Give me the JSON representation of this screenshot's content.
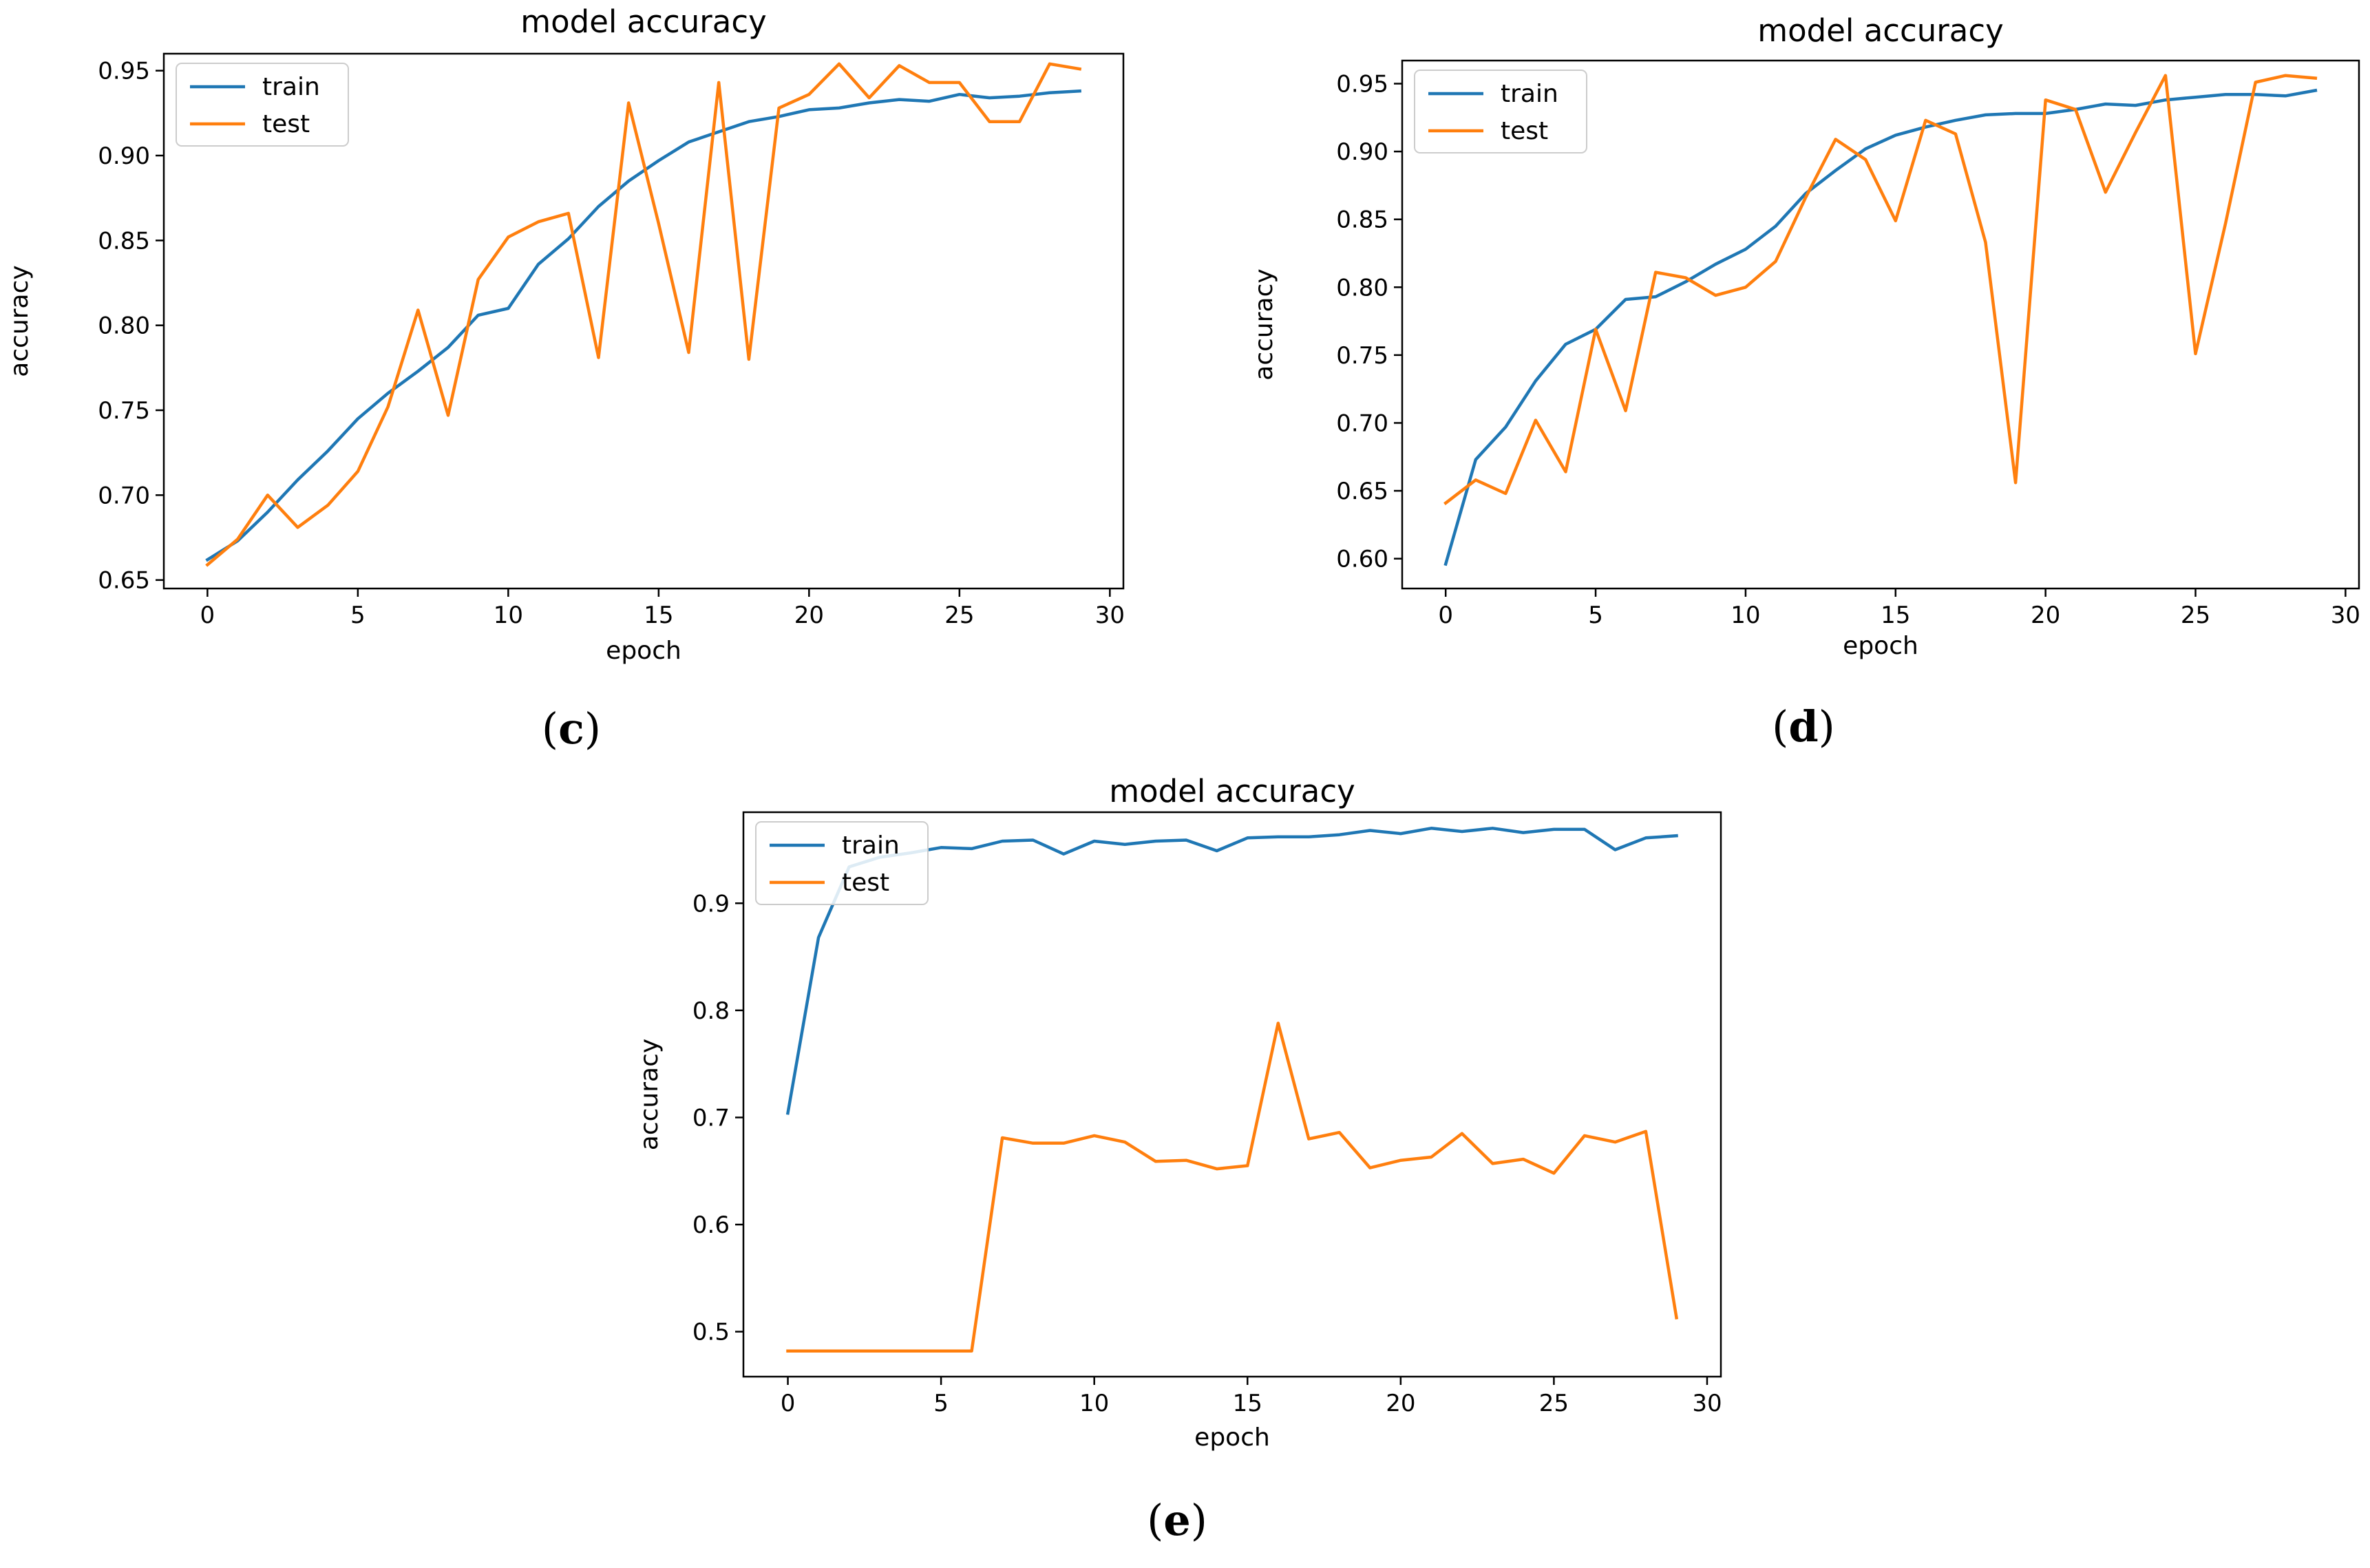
{
  "chart_data": [
    {
      "id": "c",
      "type": "line",
      "title": "model accuracy",
      "xlabel": "epoch",
      "ylabel": "accuracy",
      "xlim": [
        -1.45,
        30.45
      ],
      "ylim": [
        0.645,
        0.96
      ],
      "xticks": [
        0,
        5,
        10,
        15,
        20,
        25,
        30
      ],
      "yticks": [
        0.65,
        0.7,
        0.75,
        0.8,
        0.85,
        0.9,
        0.95
      ],
      "ytick_labels": [
        "0.65",
        "0.70",
        "0.75",
        "0.80",
        "0.85",
        "0.90",
        "0.95"
      ],
      "legend_position": "upper-left",
      "caption": {
        "open": "(",
        "letter": "c",
        "close": ")"
      },
      "x": [
        0,
        1,
        2,
        3,
        4,
        5,
        6,
        7,
        8,
        9,
        10,
        11,
        12,
        13,
        14,
        15,
        16,
        17,
        18,
        19,
        20,
        21,
        22,
        23,
        24,
        25,
        26,
        27,
        28,
        29
      ],
      "series": [
        {
          "name": "train",
          "color": "#1f77b4",
          "values": [
            0.662,
            0.673,
            0.69,
            0.709,
            0.726,
            0.745,
            0.76,
            0.773,
            0.787,
            0.806,
            0.81,
            0.836,
            0.851,
            0.87,
            0.885,
            0.897,
            0.908,
            0.914,
            0.92,
            0.923,
            0.927,
            0.928,
            0.931,
            0.933,
            0.932,
            0.936,
            0.934,
            0.935,
            0.937,
            0.938
          ]
        },
        {
          "name": "test",
          "color": "#ff7f0e",
          "values": [
            0.659,
            0.674,
            0.7,
            0.681,
            0.694,
            0.714,
            0.752,
            0.809,
            0.747,
            0.827,
            0.852,
            0.861,
            0.866,
            0.781,
            0.931,
            0.86,
            0.784,
            0.943,
            0.78,
            0.928,
            0.936,
            0.954,
            0.934,
            0.953,
            0.943,
            0.943,
            0.92,
            0.92,
            0.954,
            0.951
          ]
        }
      ]
    },
    {
      "id": "d",
      "type": "line",
      "title": "model accuracy",
      "xlabel": "epoch",
      "ylabel": "accuracy",
      "xlim": [
        -1.45,
        30.45
      ],
      "ylim": [
        0.578,
        0.967
      ],
      "xticks": [
        0,
        5,
        10,
        15,
        20,
        25,
        30
      ],
      "yticks": [
        0.6,
        0.65,
        0.7,
        0.75,
        0.8,
        0.85,
        0.9,
        0.95
      ],
      "ytick_labels": [
        "0.60",
        "0.65",
        "0.70",
        "0.75",
        "0.80",
        "0.85",
        "0.90",
        "0.95"
      ],
      "legend_position": "upper-left",
      "caption": {
        "open": "(",
        "letter": "d",
        "close": ")"
      },
      "x": [
        0,
        1,
        2,
        3,
        4,
        5,
        6,
        7,
        8,
        9,
        10,
        11,
        12,
        13,
        14,
        15,
        16,
        17,
        18,
        19,
        20,
        21,
        22,
        23,
        24,
        25,
        26,
        27,
        28,
        29
      ],
      "series": [
        {
          "name": "train",
          "color": "#1f77b4",
          "values": [
            0.596,
            0.673,
            0.697,
            0.731,
            0.758,
            0.769,
            0.791,
            0.793,
            0.804,
            0.817,
            0.828,
            0.845,
            0.869,
            0.886,
            0.902,
            0.912,
            0.918,
            0.923,
            0.927,
            0.928,
            0.928,
            0.931,
            0.935,
            0.934,
            0.938,
            0.94,
            0.942,
            0.942,
            0.941,
            0.945
          ]
        },
        {
          "name": "test",
          "color": "#ff7f0e",
          "values": [
            0.641,
            0.658,
            0.648,
            0.702,
            0.664,
            0.769,
            0.709,
            0.811,
            0.807,
            0.794,
            0.8,
            0.819,
            0.866,
            0.909,
            0.894,
            0.849,
            0.923,
            0.913,
            0.833,
            0.656,
            0.938,
            0.931,
            0.87,
            0.914,
            0.956,
            0.751,
            0.847,
            0.951,
            0.956,
            0.954
          ]
        }
      ]
    },
    {
      "id": "e",
      "type": "line",
      "title": "model accuracy",
      "xlabel": "epoch",
      "ylabel": "accuracy",
      "xlim": [
        -1.45,
        30.45
      ],
      "ylim": [
        0.458,
        0.985
      ],
      "xticks": [
        0,
        5,
        10,
        15,
        20,
        25,
        30
      ],
      "yticks": [
        0.5,
        0.6,
        0.7,
        0.8,
        0.9
      ],
      "ytick_labels": [
        "0.5",
        "0.6",
        "0.7",
        "0.8",
        "0.9"
      ],
      "legend_position": "upper-left",
      "caption": {
        "open": "(",
        "letter": "e",
        "close": ")"
      },
      "x": [
        0,
        1,
        2,
        3,
        4,
        5,
        6,
        7,
        8,
        9,
        10,
        11,
        12,
        13,
        14,
        15,
        16,
        17,
        18,
        19,
        20,
        21,
        22,
        23,
        24,
        25,
        26,
        27,
        28,
        29
      ],
      "series": [
        {
          "name": "train",
          "color": "#1f77b4",
          "values": [
            0.704,
            0.868,
            0.934,
            0.943,
            0.947,
            0.952,
            0.951,
            0.958,
            0.959,
            0.946,
            0.958,
            0.955,
            0.958,
            0.959,
            0.949,
            0.961,
            0.962,
            0.962,
            0.964,
            0.968,
            0.965,
            0.97,
            0.967,
            0.97,
            0.966,
            0.969,
            0.969,
            0.95,
            0.961,
            0.963
          ]
        },
        {
          "name": "test",
          "color": "#ff7f0e",
          "values": [
            0.482,
            0.482,
            0.482,
            0.482,
            0.482,
            0.482,
            0.482,
            0.681,
            0.676,
            0.676,
            0.683,
            0.677,
            0.659,
            0.66,
            0.652,
            0.655,
            0.788,
            0.68,
            0.686,
            0.653,
            0.66,
            0.663,
            0.685,
            0.657,
            0.661,
            0.648,
            0.683,
            0.677,
            0.687,
            0.513
          ]
        }
      ]
    }
  ]
}
